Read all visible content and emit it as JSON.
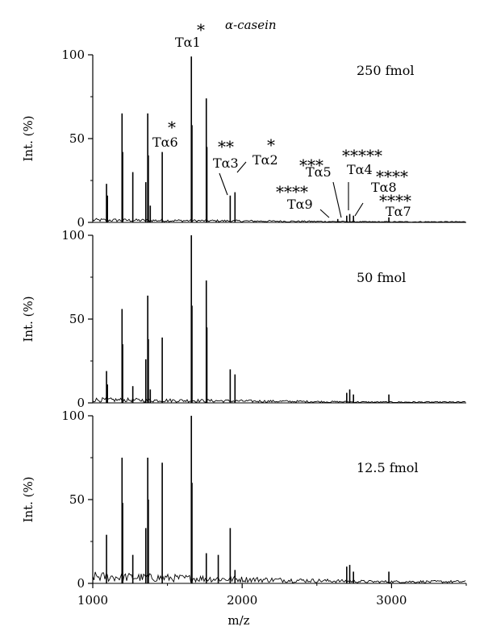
{
  "chart_data": {
    "type": "line",
    "title": "α-casein",
    "xlabel": "m/z",
    "ylabel": "Int. (%)",
    "xlim": [
      1000,
      3500
    ],
    "ylim": [
      0,
      100
    ],
    "x_ticks": [
      "1000",
      "2000",
      "3000"
    ],
    "y_ticks": [
      "0",
      "50",
      "100"
    ],
    "grid": false,
    "panels": [
      {
        "label": "250 fmol",
        "noise": 1.2,
        "peaks": [
          {
            "x": 1092,
            "y": 23
          },
          {
            "x": 1098,
            "y": 16
          },
          {
            "x": 1196,
            "y": 65
          },
          {
            "x": 1200,
            "y": 42
          },
          {
            "x": 1268,
            "y": 30
          },
          {
            "x": 1355,
            "y": 24
          },
          {
            "x": 1368,
            "y": 65
          },
          {
            "x": 1372,
            "y": 40
          },
          {
            "x": 1385,
            "y": 10
          },
          {
            "x": 1465,
            "y": 42
          },
          {
            "x": 1660,
            "y": 99
          },
          {
            "x": 1664,
            "y": 58
          },
          {
            "x": 1760,
            "y": 74
          },
          {
            "x": 1764,
            "y": 45
          },
          {
            "x": 1920,
            "y": 16
          },
          {
            "x": 1952,
            "y": 18
          },
          {
            "x": 2640,
            "y": 2
          },
          {
            "x": 2700,
            "y": 4
          },
          {
            "x": 2720,
            "y": 5
          },
          {
            "x": 2745,
            "y": 4
          },
          {
            "x": 2982,
            "y": 3
          }
        ],
        "annotations": [
          {
            "stars": "*",
            "label": "Tα1",
            "peak_x": 1660
          },
          {
            "stars": "*",
            "label": "Tα6",
            "peak_x": 1465
          },
          {
            "stars": "**",
            "label": "Tα3",
            "peak_x": 1920
          },
          {
            "stars": "*",
            "label": "Tα2",
            "peak_x": 1952
          },
          {
            "stars": "***",
            "label": "Tα5",
            "peak_x": 2700
          },
          {
            "stars": "*****",
            "label": "Tα4",
            "peak_x": 2720
          },
          {
            "stars": "****",
            "label": "Tα9",
            "peak_x": 2640
          },
          {
            "stars": "****",
            "label": "Tα8",
            "peak_x": 2745
          },
          {
            "stars": "****",
            "label": "Tα7",
            "peak_x": 2982
          }
        ]
      },
      {
        "label": "50 fmol",
        "noise": 1.6,
        "peaks": [
          {
            "x": 1092,
            "y": 19
          },
          {
            "x": 1098,
            "y": 11
          },
          {
            "x": 1196,
            "y": 56
          },
          {
            "x": 1200,
            "y": 35
          },
          {
            "x": 1268,
            "y": 10
          },
          {
            "x": 1355,
            "y": 26
          },
          {
            "x": 1368,
            "y": 64
          },
          {
            "x": 1372,
            "y": 38
          },
          {
            "x": 1385,
            "y": 8
          },
          {
            "x": 1465,
            "y": 39
          },
          {
            "x": 1660,
            "y": 100
          },
          {
            "x": 1664,
            "y": 58
          },
          {
            "x": 1760,
            "y": 73
          },
          {
            "x": 1764,
            "y": 45
          },
          {
            "x": 1920,
            "y": 20
          },
          {
            "x": 1952,
            "y": 17
          },
          {
            "x": 2700,
            "y": 6
          },
          {
            "x": 2720,
            "y": 8
          },
          {
            "x": 2745,
            "y": 5
          },
          {
            "x": 2982,
            "y": 5
          }
        ]
      },
      {
        "label": "12.5 fmol",
        "noise": 3.5,
        "peaks": [
          {
            "x": 1092,
            "y": 29
          },
          {
            "x": 1196,
            "y": 75
          },
          {
            "x": 1200,
            "y": 48
          },
          {
            "x": 1268,
            "y": 17
          },
          {
            "x": 1355,
            "y": 33
          },
          {
            "x": 1368,
            "y": 75
          },
          {
            "x": 1372,
            "y": 50
          },
          {
            "x": 1465,
            "y": 72
          },
          {
            "x": 1660,
            "y": 100
          },
          {
            "x": 1664,
            "y": 60
          },
          {
            "x": 1760,
            "y": 18
          },
          {
            "x": 1840,
            "y": 17
          },
          {
            "x": 1920,
            "y": 33
          },
          {
            "x": 1952,
            "y": 8
          },
          {
            "x": 2700,
            "y": 10
          },
          {
            "x": 2720,
            "y": 11
          },
          {
            "x": 2745,
            "y": 7
          },
          {
            "x": 2982,
            "y": 7
          }
        ]
      }
    ]
  }
}
